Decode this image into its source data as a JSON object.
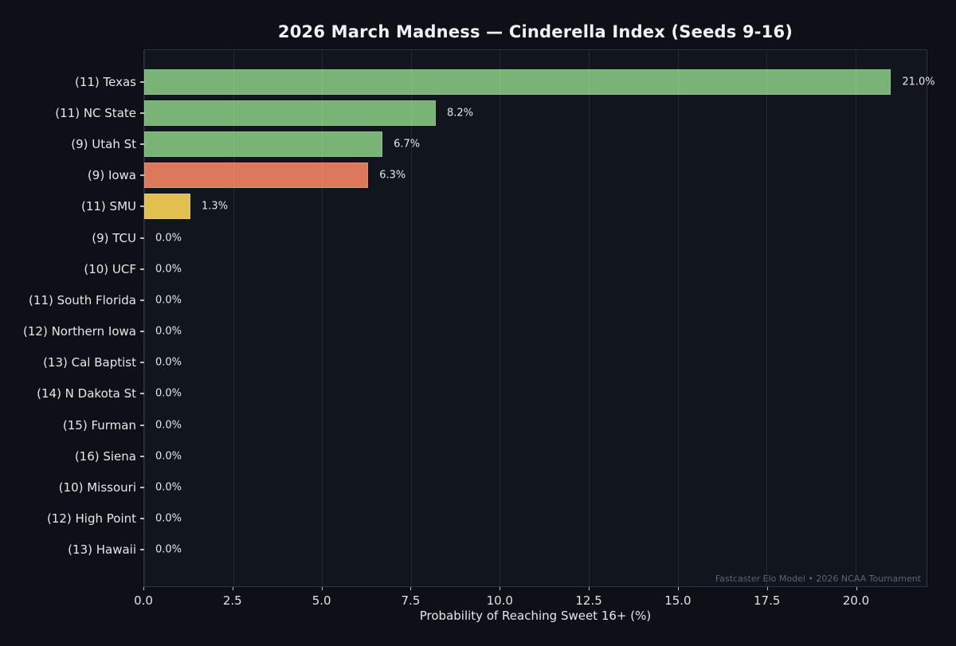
{
  "chart_data": {
    "type": "bar",
    "orientation": "horizontal",
    "title": "2026 March Madness — Cinderella Index (Seeds 9-16)",
    "xlabel": "Probability of Reaching Sweet 16+ (%)",
    "footer": "Fastcaster Elo Model • 2026 NCAA Tournament",
    "xlim": [
      0,
      22
    ],
    "grid": "vertical",
    "legend": "none",
    "xticks": [
      {
        "value": 0,
        "label": "0.0"
      },
      {
        "value": 2.5,
        "label": "2.5"
      },
      {
        "value": 5,
        "label": "5.0"
      },
      {
        "value": 7.5,
        "label": "7.5"
      },
      {
        "value": 10,
        "label": "10.0"
      },
      {
        "value": 12.5,
        "label": "12.5"
      },
      {
        "value": 15,
        "label": "15.0"
      },
      {
        "value": 17.5,
        "label": "17.5"
      },
      {
        "value": 20,
        "label": "20.0"
      }
    ],
    "bars": [
      {
        "label": "(11) Texas",
        "value": 21.0,
        "value_label": "21.0%",
        "color": "#79b375"
      },
      {
        "label": "(11) NC State",
        "value": 8.2,
        "value_label": "8.2%",
        "color": "#79b375"
      },
      {
        "label": "(9) Utah St",
        "value": 6.7,
        "value_label": "6.7%",
        "color": "#79b375"
      },
      {
        "label": "(9) Iowa",
        "value": 6.3,
        "value_label": "6.3%",
        "color": "#dc795b"
      },
      {
        "label": "(11) SMU",
        "value": 1.3,
        "value_label": "1.3%",
        "color": "#e2c04f"
      },
      {
        "label": "(9) TCU",
        "value": 0.0,
        "value_label": "0.0%",
        "color": null
      },
      {
        "label": "(10) UCF",
        "value": 0.0,
        "value_label": "0.0%",
        "color": null
      },
      {
        "label": "(11) South Florida",
        "value": 0.0,
        "value_label": "0.0%",
        "color": null
      },
      {
        "label": "(12) Northern Iowa",
        "value": 0.0,
        "value_label": "0.0%",
        "color": null
      },
      {
        "label": "(13) Cal Baptist",
        "value": 0.0,
        "value_label": "0.0%",
        "color": null
      },
      {
        "label": "(14) N Dakota St",
        "value": 0.0,
        "value_label": "0.0%",
        "color": null
      },
      {
        "label": "(15) Furman",
        "value": 0.0,
        "value_label": "0.0%",
        "color": null
      },
      {
        "label": "(16) Siena",
        "value": 0.0,
        "value_label": "0.0%",
        "color": null
      },
      {
        "label": "(10) Missouri",
        "value": 0.0,
        "value_label": "0.0%",
        "color": null
      },
      {
        "label": "(12) High Point",
        "value": 0.0,
        "value_label": "0.0%",
        "color": null
      },
      {
        "label": "(13) Hawaii",
        "value": 0.0,
        "value_label": "0.0%",
        "color": null
      }
    ],
    "colors": {
      "background": "#0d1016",
      "plot_background": "#11151d",
      "bar_green": "#79b375",
      "bar_orange": "#dc795b",
      "bar_gold": "#e2c04f",
      "spine": "#2e333d",
      "gridline": "rgba(255,255,255,0.08)",
      "text": "#e4e7ec",
      "muted_text": "#5d6470"
    }
  }
}
